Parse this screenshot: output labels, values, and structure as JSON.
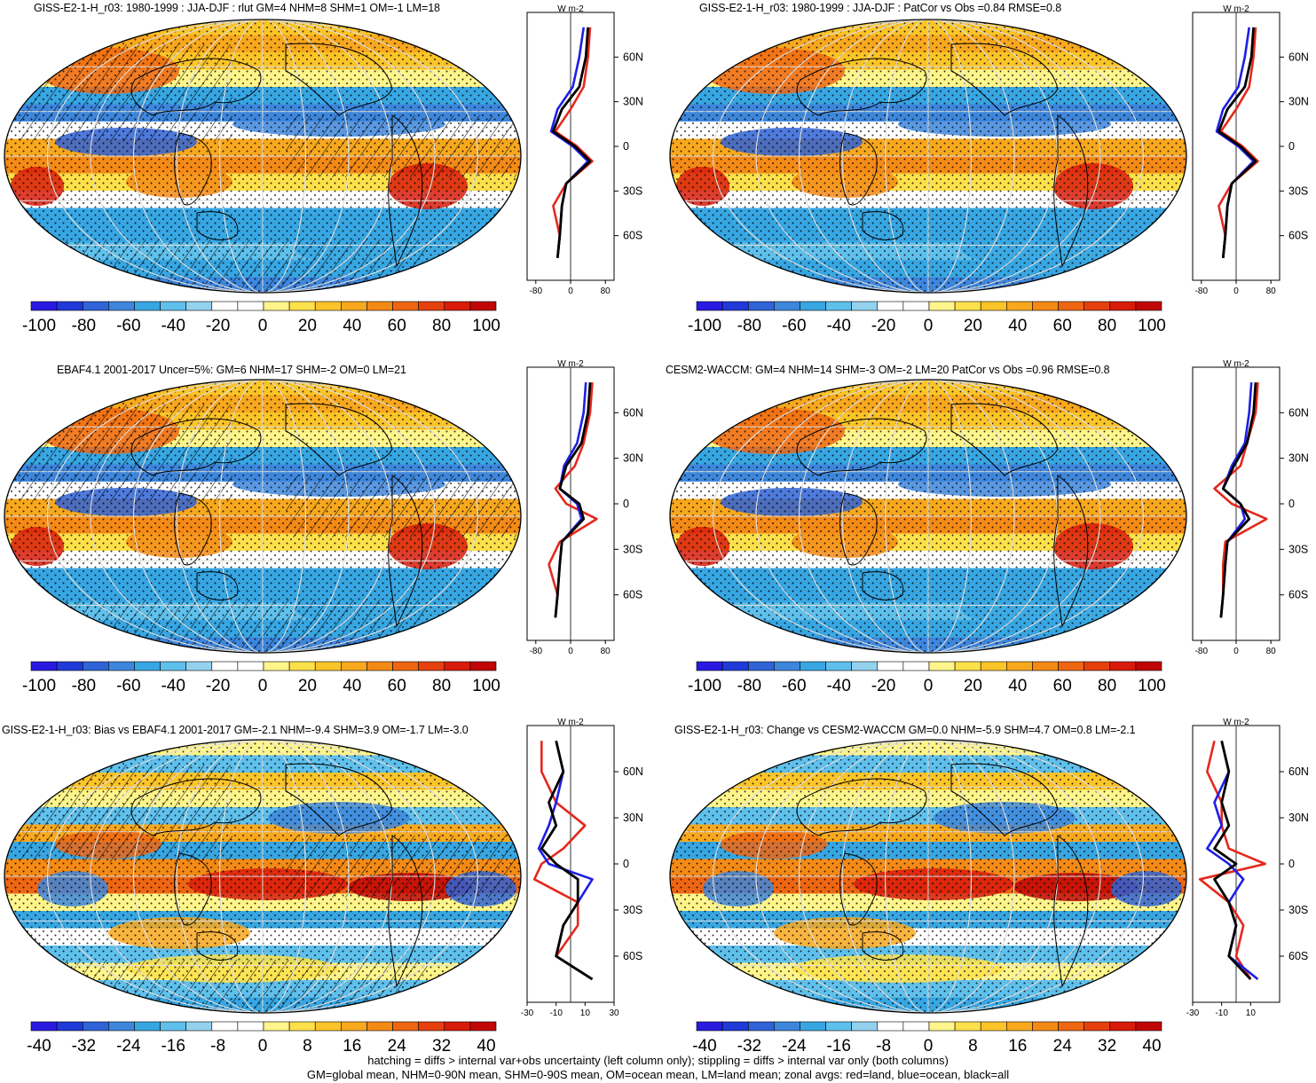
{
  "panels": [
    {
      "id": "p1",
      "title": "GISS-E2-1-H_r03: 1980-1999 : JJA-DJF : rlut GM=4 NHM=8 SHM=1 OM=-1 LM=18",
      "colorbar_labels": [
        "-100",
        "-80",
        "-60",
        "-40",
        "-20",
        "0",
        "20",
        "40",
        "60",
        "80",
        "100"
      ],
      "zonal_xticks": [
        "-80",
        "0",
        "80"
      ],
      "units": "W m-2",
      "hatching": true
    },
    {
      "id": "p2",
      "title": "GISS-E2-1-H_r03: 1980-1999 : JJA-DJF : PatCor vs Obs =0.84 RMSE=0.8",
      "colorbar_labels": [
        "-100",
        "-80",
        "-60",
        "-40",
        "-20",
        "0",
        "20",
        "40",
        "60",
        "80",
        "100"
      ],
      "zonal_xticks": [
        "-80",
        "0",
        "80"
      ],
      "units": "W m-2",
      "hatching": false
    },
    {
      "id": "p3",
      "title": "EBAF4.1 2001-2017 Uncer=5%: GM=6 NHM=17 SHM=-2 OM=0 LM=21",
      "colorbar_labels": [
        "-100",
        "-80",
        "-60",
        "-40",
        "-20",
        "0",
        "20",
        "40",
        "60",
        "80",
        "100"
      ],
      "zonal_xticks": [
        "-80",
        "0",
        "80"
      ],
      "units": "W m-2",
      "hatching": true
    },
    {
      "id": "p4",
      "title": "CESM2-WACCM: GM=4 NHM=14 SHM=-3 OM=-2 LM=20 PatCor vs Obs =0.96 RMSE=0.8",
      "colorbar_labels": [
        "-100",
        "-80",
        "-60",
        "-40",
        "-20",
        "0",
        "20",
        "40",
        "60",
        "80",
        "100"
      ],
      "zonal_xticks": [
        "-80",
        "0",
        "80"
      ],
      "units": "W m-2",
      "hatching": false
    },
    {
      "id": "p5",
      "title": "GISS-E2-1-H_r03: Bias vs EBAF4.1 2001-2017 GM=-2.1 NHM=-9.4 SHM=3.9 OM=-1.7 LM=-3.0",
      "colorbar_labels": [
        "-40",
        "-32",
        "-24",
        "-16",
        "-8",
        "0",
        "8",
        "16",
        "24",
        "32",
        "40"
      ],
      "zonal_xticks": [
        "-30",
        "-10",
        "10",
        "30"
      ],
      "units": "W m-2",
      "hatching": true
    },
    {
      "id": "p6",
      "title": "GISS-E2-1-H_r03: Change vs CESM2-WACCM GM=0.0 NHM=-5.9 SHM=4.7 OM=0.8 LM=-2.1",
      "colorbar_labels": [
        "-40",
        "-32",
        "-24",
        "-16",
        "-8",
        "0",
        "8",
        "16",
        "24",
        "32",
        "40"
      ],
      "zonal_xticks": [
        "-30",
        "-10",
        "10"
      ],
      "units": "W m-2",
      "hatching": false
    }
  ],
  "lat_ticks": [
    "60N",
    "30N",
    "0",
    "30S",
    "60S"
  ],
  "colors": {
    "palette": [
      "#2a1ae0",
      "#1f3ad8",
      "#2f63d6",
      "#3d86dc",
      "#37a6e2",
      "#5fc0ec",
      "#93d1ee",
      "#ffffff",
      "#ffffff",
      "#fff58a",
      "#fde04a",
      "#fbc428",
      "#f8a81e",
      "#f48a16",
      "#ee6612",
      "#e5400e",
      "#d81b0a",
      "#c00606"
    ],
    "land": "#e5281d",
    "ocean": "#1e1ee6",
    "all": "#000000"
  },
  "footer": {
    "line1": "hatching = diffs > internal var+obs uncertainty (left column only); stippling = diffs > internal var only (both columns)",
    "line2": "GM=global mean, NHM=0-90N mean, SHM=0-90S mean, OM=ocean mean, LM=land mean; zonal avgs: red=land, blue=ocean, black=all"
  },
  "chart_data": [
    {
      "type": "heatmap",
      "title": "GISS-E2-1-H_r03: 1980-1999 : JJA-DJF : rlut GM=4 NHM=8 SHM=1 OM=-1 LM=18",
      "colorbar": [
        -100,
        100
      ],
      "zonal_mean": {
        "lat": [
          80,
          60,
          40,
          25,
          10,
          0,
          -10,
          -25,
          -40,
          -60,
          -75
        ],
        "all": [
          40,
          35,
          20,
          -20,
          -40,
          10,
          45,
          -10,
          -20,
          -25,
          -30
        ],
        "land": [
          45,
          40,
          30,
          0,
          -35,
          15,
          50,
          -10,
          -40,
          -25,
          -30
        ],
        "ocean": [
          30,
          20,
          5,
          -30,
          -45,
          5,
          40,
          -10,
          -20,
          -25,
          -30
        ]
      }
    },
    {
      "type": "heatmap",
      "title": "GISS-E2-1-H_r03: 1980-1999 : JJA-DJF : PatCor vs Obs =0.84 RMSE=0.8",
      "colorbar": [
        -100,
        100
      ],
      "zonal_mean": {
        "lat": [
          80,
          60,
          40,
          25,
          10,
          0,
          -10,
          -25,
          -40,
          -60,
          -75
        ],
        "all": [
          40,
          35,
          20,
          -20,
          -40,
          10,
          45,
          -10,
          -20,
          -25,
          -30
        ],
        "land": [
          45,
          40,
          30,
          0,
          -35,
          15,
          50,
          -10,
          -40,
          -25,
          -30
        ],
        "ocean": [
          30,
          20,
          5,
          -30,
          -45,
          5,
          40,
          -10,
          -20,
          -25,
          -30
        ]
      }
    },
    {
      "type": "heatmap",
      "title": "EBAF4.1 2001-2017 Uncer=5%: GM=6 NHM=17 SHM=-2 OM=0 LM=21",
      "colorbar": [
        -100,
        100
      ],
      "zonal_mean": {
        "lat": [
          80,
          60,
          40,
          25,
          10,
          0,
          -10,
          -25,
          -40,
          -60,
          -75
        ],
        "all": [
          45,
          40,
          25,
          -10,
          -25,
          20,
          30,
          -20,
          -25,
          -30,
          -35
        ],
        "land": [
          50,
          45,
          30,
          10,
          -35,
          -10,
          60,
          -25,
          -50,
          -30,
          -35
        ],
        "ocean": [
          35,
          30,
          15,
          -15,
          -25,
          15,
          25,
          -20,
          -25,
          -30,
          -35
        ]
      }
    },
    {
      "type": "heatmap",
      "title": "CESM2-WACCM: GM=4 NHM=14 SHM=-3 OM=-2 LM=20 PatCor vs Obs =0.96 RMSE=0.8",
      "colorbar": [
        -100,
        100
      ],
      "zonal_mean": {
        "lat": [
          80,
          60,
          40,
          25,
          10,
          0,
          -10,
          -25,
          -40,
          -60,
          -75
        ],
        "all": [
          45,
          40,
          25,
          -5,
          -30,
          10,
          30,
          -20,
          -25,
          -30,
          -35
        ],
        "land": [
          50,
          45,
          25,
          10,
          -50,
          -10,
          70,
          -25,
          -30,
          -30,
          -35
        ],
        "ocean": [
          35,
          30,
          20,
          -10,
          -30,
          10,
          20,
          -20,
          -25,
          -30,
          -35
        ]
      }
    },
    {
      "type": "heatmap",
      "title": "GISS-E2-1-H_r03: Bias vs EBAF4.1 2001-2017 GM=-2.1 NHM=-9.4 SHM=3.9 OM=-1.7 LM=-3.0",
      "colorbar": [
        -40,
        40
      ],
      "zonal_mean": {
        "lat": [
          80,
          60,
          40,
          25,
          10,
          0,
          -10,
          -25,
          -40,
          -60,
          -75
        ],
        "all": [
          -10,
          -5,
          -15,
          -10,
          -20,
          -10,
          5,
          5,
          -5,
          -10,
          15
        ],
        "land": [
          -20,
          -20,
          -10,
          10,
          -5,
          -20,
          -25,
          5,
          5,
          -10,
          15
        ],
        "ocean": [
          -10,
          -5,
          -10,
          -15,
          -22,
          -15,
          15,
          5,
          -5,
          -10,
          15
        ]
      }
    },
    {
      "type": "heatmap",
      "title": "GISS-E2-1-H_r03: Change vs CESM2-WACCM GM=0.0 NHM=-5.9 SHM=4.7 OM=0.8 LM=-2.1",
      "colorbar": [
        -40,
        40
      ],
      "zonal_mean": {
        "lat": [
          80,
          60,
          40,
          25,
          10,
          0,
          -10,
          -25,
          -40,
          -60,
          -75
        ],
        "all": [
          -10,
          -5,
          -10,
          -5,
          -15,
          0,
          -15,
          -5,
          0,
          -5,
          10
        ],
        "land": [
          -15,
          -20,
          -10,
          -10,
          -5,
          20,
          -25,
          -5,
          5,
          0,
          10
        ],
        "ocean": [
          -10,
          -5,
          -15,
          -10,
          -20,
          -5,
          5,
          -5,
          0,
          -5,
          15
        ]
      }
    }
  ]
}
